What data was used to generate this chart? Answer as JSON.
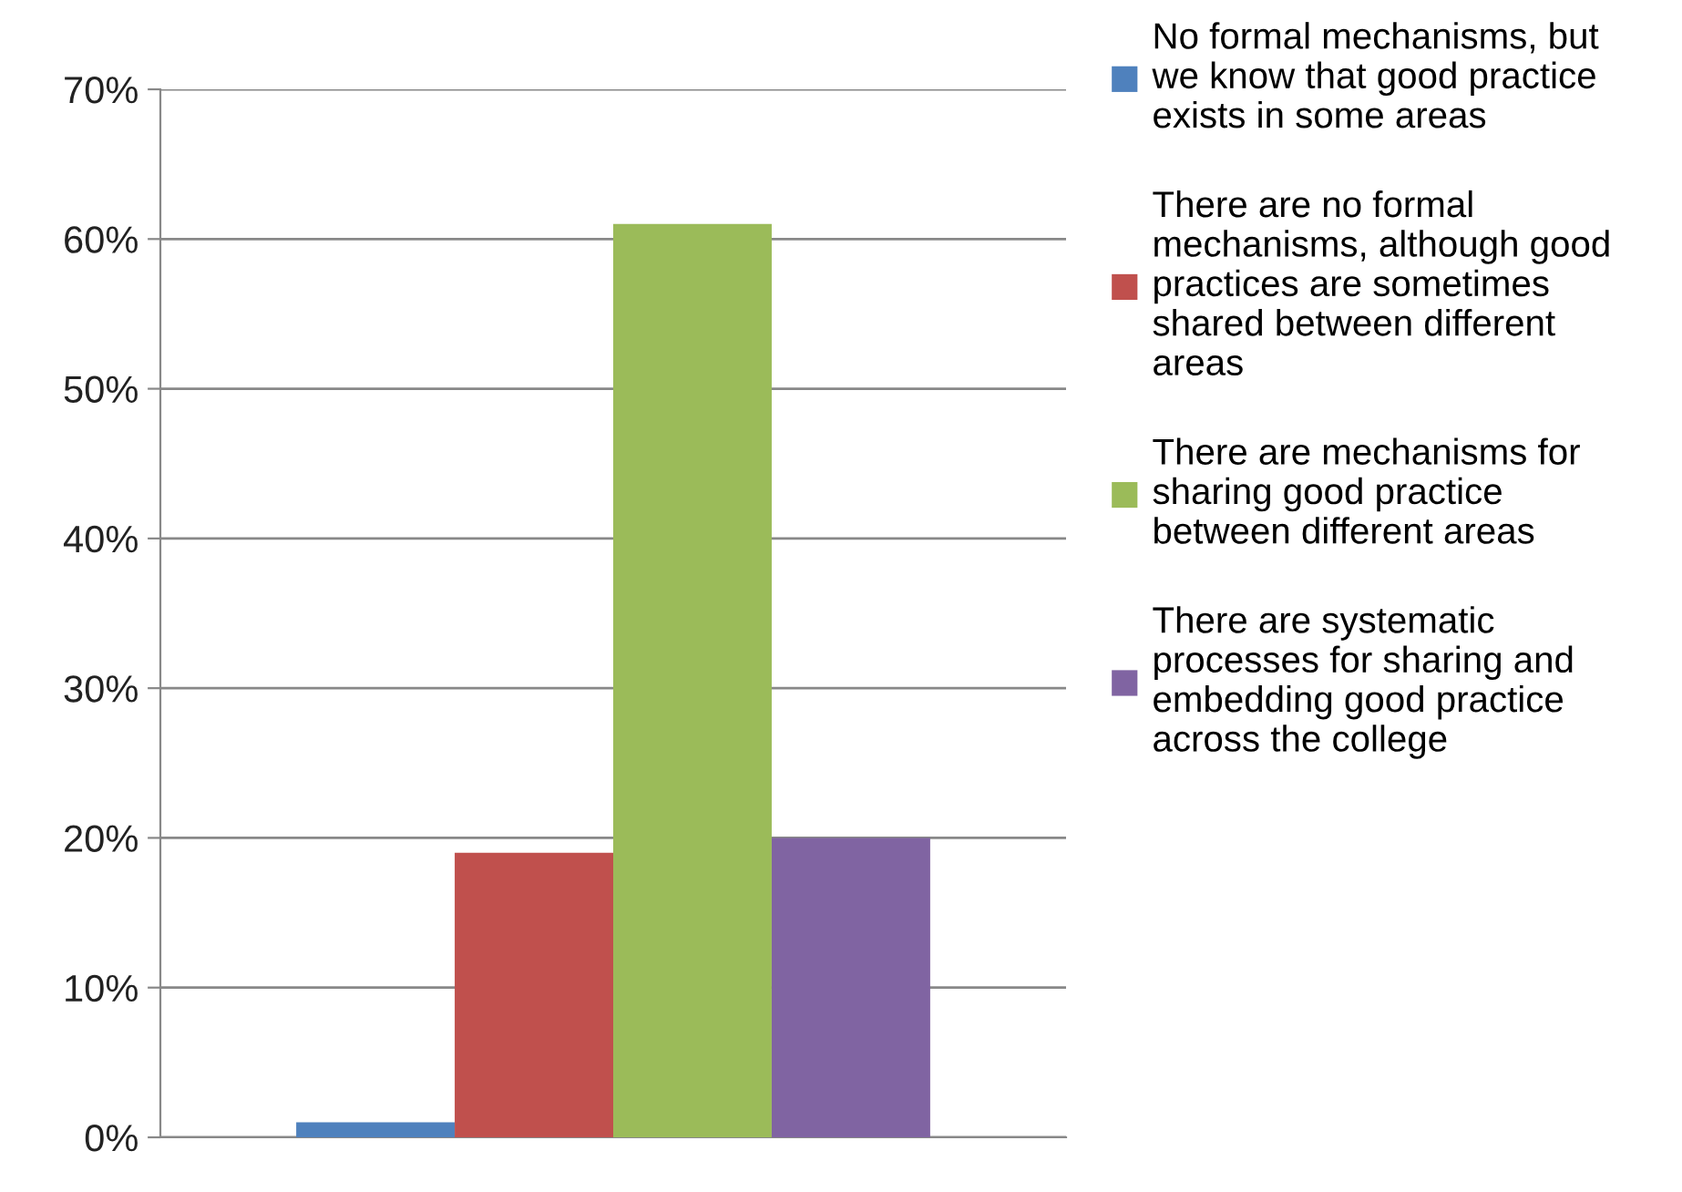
{
  "chart_data": {
    "type": "bar",
    "categories": [
      null
    ],
    "series": [
      {
        "name": "No formal mechanisms, but\nwe know that good practice\nexists in some areas",
        "color": "#4f81bd",
        "values": [
          1
        ]
      },
      {
        "name": "There are no formal\nmechanisms, although good\npractices are sometimes\nshared between different\nareas",
        "color": "#c0504d",
        "values": [
          19
        ]
      },
      {
        "name": "There are mechanisms for\nsharing good practice\nbetween different areas",
        "color": "#9bbb59",
        "values": [
          61
        ]
      },
      {
        "name": "There are systematic\nprocesses for sharing and\nembedding good practice\nacross the college",
        "color": "#8064a2",
        "values": [
          20
        ]
      }
    ],
    "ylim": [
      0,
      70
    ],
    "yticks": [
      {
        "value": 0,
        "label": "0%"
      },
      {
        "value": 10,
        "label": "10%"
      },
      {
        "value": 20,
        "label": "20%"
      },
      {
        "value": 30,
        "label": "30%"
      },
      {
        "value": 40,
        "label": "40%"
      },
      {
        "value": 50,
        "label": "50%"
      },
      {
        "value": 60,
        "label": "60%"
      },
      {
        "value": 70,
        "label": "70%"
      }
    ],
    "grid": "y",
    "legend": "right"
  }
}
